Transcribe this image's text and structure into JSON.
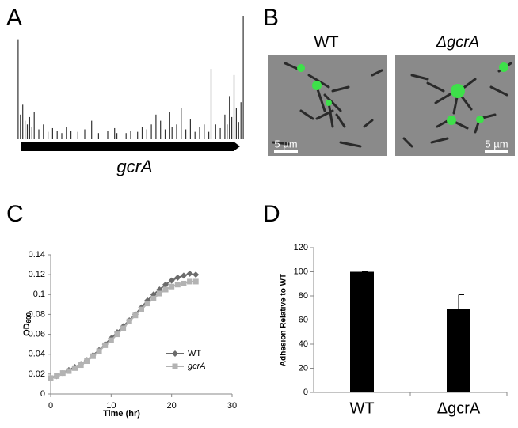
{
  "figure": {
    "panel_labels": [
      "A",
      "B",
      "C",
      "D"
    ],
    "gene_label": "gcrA",
    "image_labels": [
      "WT",
      "ΔgcrA"
    ],
    "scale_bar_labels": [
      "5 µm",
      "5 µm"
    ]
  },
  "chart_data": [
    {
      "type": "spikes",
      "color": "#333333",
      "x": [
        1,
        2,
        3,
        4,
        5,
        6,
        7,
        8,
        10,
        12,
        14,
        16,
        18,
        20,
        22,
        24,
        27,
        30,
        33,
        36,
        40,
        43,
        44,
        48,
        50,
        53,
        55,
        57,
        59,
        61,
        63,
        65,
        67,
        68,
        70,
        72,
        74,
        76,
        78,
        80,
        82,
        84,
        85,
        87,
        89,
        91,
        92,
        93,
        94,
        95,
        96,
        97,
        98,
        99
      ],
      "values": [
        81,
        20,
        28,
        15,
        12,
        18,
        10,
        22,
        8,
        12,
        6,
        9,
        7,
        5,
        10,
        7,
        6,
        8,
        15,
        5,
        7,
        9,
        5,
        5,
        7,
        6,
        10,
        8,
        12,
        20,
        15,
        8,
        22,
        10,
        12,
        25,
        8,
        16,
        6,
        10,
        12,
        6,
        57,
        12,
        9,
        20,
        12,
        35,
        18,
        52,
        25,
        14,
        30,
        100
      ],
      "xlim": [
        0,
        100
      ],
      "ylim": [
        0,
        100
      ]
    },
    {
      "type": "line",
      "x_label": "Time (hr)",
      "y_label": "OD",
      "y_label_sub": "600",
      "x": [
        0,
        1,
        2,
        3,
        4,
        5,
        6,
        7,
        8,
        9,
        10,
        11,
        12,
        13,
        14,
        15,
        16,
        17,
        18,
        19,
        20,
        21,
        22,
        23,
        24
      ],
      "series": [
        {
          "name": "WT",
          "color": "#6b6b6b",
          "marker": "diamond",
          "values": [
            0.016,
            0.018,
            0.021,
            0.024,
            0.027,
            0.03,
            0.034,
            0.039,
            0.044,
            0.05,
            0.056,
            0.062,
            0.068,
            0.074,
            0.08,
            0.087,
            0.094,
            0.1,
            0.105,
            0.11,
            0.114,
            0.117,
            0.119,
            0.121,
            0.12
          ]
        },
        {
          "name": "gcrA",
          "color": "#b3b3b3",
          "marker": "square",
          "values": [
            0.016,
            0.018,
            0.021,
            0.023,
            0.026,
            0.029,
            0.033,
            0.038,
            0.043,
            0.049,
            0.054,
            0.06,
            0.066,
            0.073,
            0.079,
            0.085,
            0.091,
            0.096,
            0.101,
            0.105,
            0.108,
            0.11,
            0.111,
            0.113,
            0.113
          ]
        }
      ],
      "xlim": [
        0,
        30
      ],
      "xticks": [
        0,
        10,
        20,
        30
      ],
      "ylim": [
        0,
        0.14
      ],
      "yticks": [
        0,
        0.02,
        0.04,
        0.06,
        0.08,
        0.1,
        0.12,
        0.14
      ],
      "legend": "right"
    },
    {
      "type": "bar",
      "y_label": "Adhesion Relative to WT",
      "categories": [
        "WT",
        "ΔgcrA"
      ],
      "values": [
        100,
        69
      ],
      "errors": [
        0,
        12
      ],
      "color": "#000000",
      "ylim": [
        0,
        120
      ],
      "yticks": [
        0,
        20,
        40,
        60,
        80,
        100,
        120
      ]
    }
  ]
}
